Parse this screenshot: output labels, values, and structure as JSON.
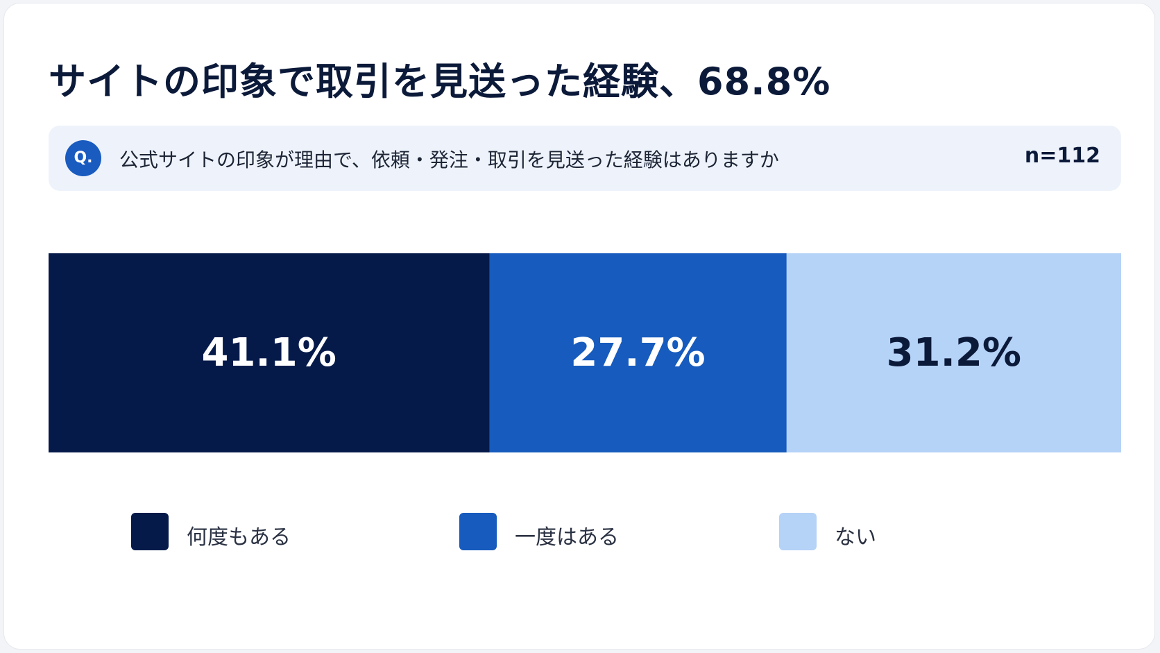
{
  "title": "サイトの印象で取引を見送った経験、68.8%",
  "question": {
    "badge": "Q.",
    "text": "公式サイトの印象が理由で、依頼・発注・取引を見送った経験はありますか",
    "n": "n=112"
  },
  "chart_data": {
    "type": "bar",
    "orientation": "horizontal-stacked",
    "categories": [
      "何度もある",
      "一度はある",
      "ない"
    ],
    "values": [
      41.1,
      27.7,
      31.2
    ],
    "labels": [
      "41.1%",
      "27.7%",
      "31.2%"
    ],
    "colors": [
      "#061a4a",
      "#165bbd",
      "#b5d2f7"
    ],
    "label_colors": [
      "#ffffff",
      "#ffffff",
      "#0c1a3a"
    ],
    "total": 100,
    "legend_position": "bottom"
  }
}
